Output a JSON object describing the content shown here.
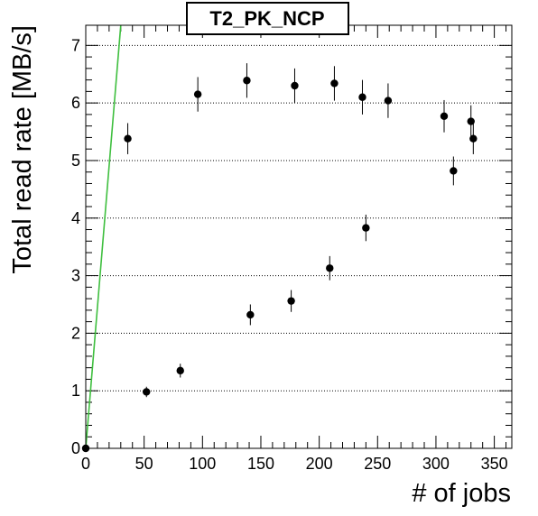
{
  "chart_data": {
    "type": "scatter",
    "title": "T2_PK_NCP",
    "xlabel": "# of jobs",
    "ylabel": "Total read rate [MB/s]",
    "xlim": [
      0,
      365
    ],
    "ylim": [
      0,
      7.35
    ],
    "xticks": [
      0,
      50,
      100,
      150,
      200,
      250,
      300,
      350
    ],
    "yticks": [
      0,
      1,
      2,
      3,
      4,
      5,
      6,
      7
    ],
    "grid": "horizontal-dotted",
    "series": [
      {
        "color": "#000000",
        "points": [
          {
            "x": 0,
            "y": 0.0,
            "err": 0.0
          },
          {
            "x": 36,
            "y": 5.38,
            "err": 0.27
          },
          {
            "x": 52,
            "y": 0.98,
            "err": 0.09
          },
          {
            "x": 81,
            "y": 1.35,
            "err": 0.12
          },
          {
            "x": 96,
            "y": 6.15,
            "err": 0.3
          },
          {
            "x": 138,
            "y": 6.39,
            "err": 0.3
          },
          {
            "x": 141,
            "y": 2.32,
            "err": 0.18
          },
          {
            "x": 176,
            "y": 2.56,
            "err": 0.19
          },
          {
            "x": 179,
            "y": 6.3,
            "err": 0.3
          },
          {
            "x": 209,
            "y": 3.13,
            "err": 0.21
          },
          {
            "x": 213,
            "y": 6.34,
            "err": 0.3
          },
          {
            "x": 237,
            "y": 6.1,
            "err": 0.3
          },
          {
            "x": 240,
            "y": 3.83,
            "err": 0.23
          },
          {
            "x": 259,
            "y": 6.04,
            "err": 0.3
          },
          {
            "x": 307,
            "y": 5.77,
            "err": 0.28
          },
          {
            "x": 315,
            "y": 4.82,
            "err": 0.25
          },
          {
            "x": 330,
            "y": 5.68,
            "err": 0.28
          },
          {
            "x": 332,
            "y": 5.38,
            "err": 0.27
          }
        ]
      }
    ],
    "reference_line": {
      "color": "#3fbf3f",
      "points": [
        [
          0,
          0
        ],
        [
          30,
          7.35
        ]
      ]
    }
  }
}
